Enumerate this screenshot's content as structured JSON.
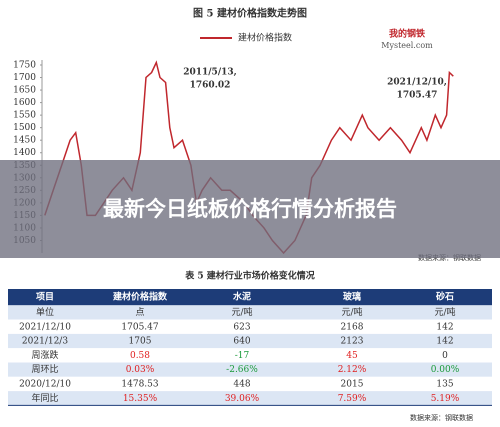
{
  "chart_data": {
    "type": "line",
    "title": "图 5 建材价格指数走势图",
    "logo": [
      "我的钢铁",
      "Mysteel.com"
    ],
    "series": [
      {
        "name": "建材价格指数",
        "color": "#c0272d",
        "x": [
          2007.4,
          2007.7,
          2008.0,
          2008.3,
          2008.5,
          2008.7,
          2008.9,
          2009.2,
          2009.5,
          2009.8,
          2010.2,
          2010.5,
          2010.8,
          2011.0,
          2011.2,
          2011.37,
          2011.5,
          2011.7,
          2011.85,
          2012.0,
          2012.3,
          2012.6,
          2012.8,
          2013.0,
          2013.3,
          2013.7,
          2014.0,
          2014.5,
          2014.8,
          2015.2,
          2015.5,
          2015.9,
          2016.3,
          2016.7,
          2016.9,
          2017.2,
          2017.6,
          2017.9,
          2018.3,
          2018.7,
          2018.9,
          2019.3,
          2019.7,
          2020.1,
          2020.4,
          2020.8,
          2021.0,
          2021.3,
          2021.5,
          2021.7,
          2021.8,
          2021.94
        ],
        "values": [
          1150,
          1250,
          1350,
          1450,
          1480,
          1350,
          1150,
          1150,
          1200,
          1250,
          1300,
          1250,
          1400,
          1700,
          1720,
          1760.02,
          1700,
          1680,
          1500,
          1420,
          1450,
          1350,
          1200,
          1250,
          1300,
          1250,
          1250,
          1200,
          1150,
          1100,
          1050,
          1000,
          1050,
          1150,
          1300,
          1350,
          1450,
          1500,
          1450,
          1550,
          1500,
          1450,
          1500,
          1450,
          1400,
          1500,
          1450,
          1550,
          1500,
          1550,
          1720,
          1705.47
        ]
      }
    ],
    "annotations": [
      {
        "lines": [
          "2011/5/13,",
          "1760.02"
        ]
      },
      {
        "lines": [
          "2021/12/10,",
          "1705.47"
        ]
      }
    ],
    "xlim": [
      2007.3,
      2022.0
    ],
    "ylim": [
      1000,
      1750
    ],
    "yticks": [
      1050,
      1100,
      1150,
      1200,
      1250,
      1300,
      1350,
      1400,
      1450,
      1500,
      1550,
      1600,
      1650,
      1700,
      1750
    ],
    "source": "数据来源：钢联数据"
  },
  "banner": {
    "title": "最新今日纸板价格行情分析报告"
  },
  "table": {
    "title": "表 5 建材行业市场价格变化情况",
    "header": [
      "项目",
      "建材价格指数",
      "水泥",
      "玻璃",
      "砂石"
    ],
    "rows": [
      [
        "单位",
        "点",
        "元/吨",
        "元/吨",
        "元/吨"
      ],
      [
        "2021/12/10",
        "1705.47",
        "623",
        "2168",
        "142"
      ],
      [
        "2021/12/3",
        "1705",
        "640",
        "2123",
        "142"
      ],
      [
        "周涨跌",
        "0.58",
        "-17",
        "45",
        "0"
      ],
      [
        "周环比",
        "0.03%",
        "-2.66%",
        "2.12%",
        "0.00%"
      ],
      [
        "2020/12/10",
        "1478.53",
        "448",
        "2015",
        "135"
      ],
      [
        "年同比",
        "15.35%",
        "39.06%",
        "7.59%",
        "5.19%"
      ]
    ],
    "source": "数据来源：钢联数据"
  }
}
